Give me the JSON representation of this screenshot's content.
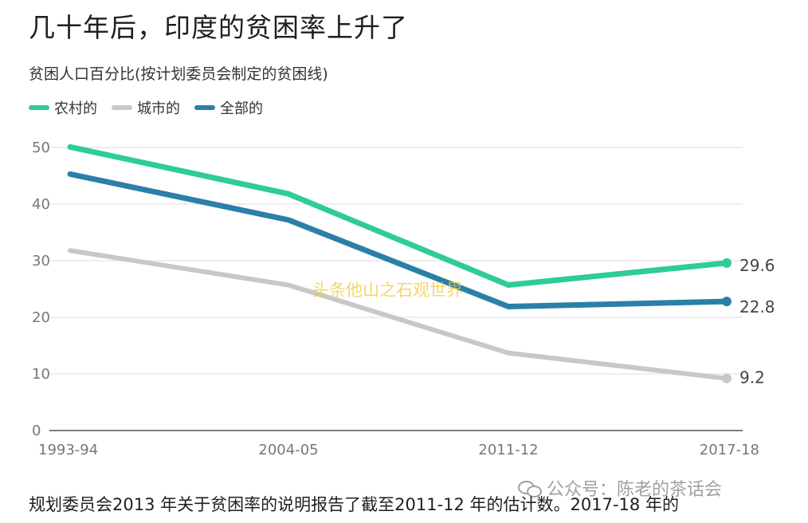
{
  "title": "几十年后，印度的贫困率上升了",
  "subtitle": "贫困人口百分比(按计划委员会制定的贫困线)",
  "watermark": "头条他山之石观世界",
  "body_text": "规划委员会2013 年关于贫困率的说明报告了截至2011-12 年的估计数。2017-18 年的",
  "wechat_label": "公众号：陈老的茶话会",
  "icons": {
    "wechat": "wechat-icon"
  },
  "colors": {
    "rural": "#2ecc9a",
    "urban": "#c8c8c8",
    "total": "#2b7fa8",
    "grid": "#e3e3e3"
  },
  "chart_data": {
    "type": "line",
    "title": "几十年后，印度的贫困率上升了",
    "subtitle": "贫困人口百分比(按计划委员会制定的贫困线)",
    "categories": [
      "1993-94",
      "2004-05",
      "2011-12",
      "2017-18"
    ],
    "ylim": [
      0,
      50
    ],
    "yticks": [
      "50",
      "40",
      "30",
      "20",
      "10",
      "0"
    ],
    "grid": true,
    "legend_position": "top-left",
    "series": [
      {
        "name": "农村的",
        "values": [
          50.1,
          41.8,
          25.7,
          29.6
        ],
        "end_label": "29.6"
      },
      {
        "name": "城市的",
        "values": [
          31.8,
          25.7,
          13.7,
          9.2
        ],
        "end_label": "9.2"
      },
      {
        "name": "全部的",
        "values": [
          45.3,
          37.2,
          21.9,
          22.8
        ],
        "end_label": "22.8"
      }
    ]
  }
}
